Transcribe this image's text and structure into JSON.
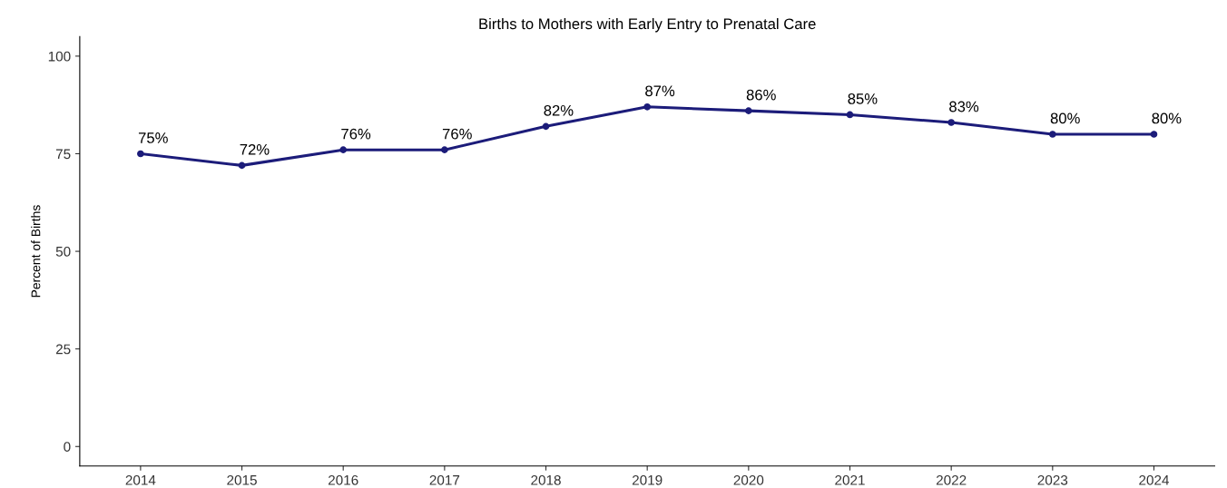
{
  "chart_data": {
    "type": "line",
    "title": "Births to Mothers with Early Entry to Prenatal Care",
    "ylabel": "Percent of Births",
    "categories": [
      "2014",
      "2015",
      "2016",
      "2017",
      "2018",
      "2019",
      "2020",
      "2021",
      "2022",
      "2023",
      "2024"
    ],
    "series": [
      {
        "color": "#1c1c7a",
        "values": [
          75,
          72,
          76,
          76,
          82,
          87,
          86,
          85,
          83,
          80,
          80
        ],
        "value_labels": [
          "75%",
          "72%",
          "76%",
          "76%",
          "82%",
          "87%",
          "86%",
          "85%",
          "83%",
          "80%",
          "80%"
        ]
      }
    ],
    "ylim": [
      -5,
      105
    ],
    "yticks": [
      0,
      25,
      50,
      75,
      100
    ],
    "grid": false,
    "marker": "circle",
    "line_style": "solid"
  }
}
